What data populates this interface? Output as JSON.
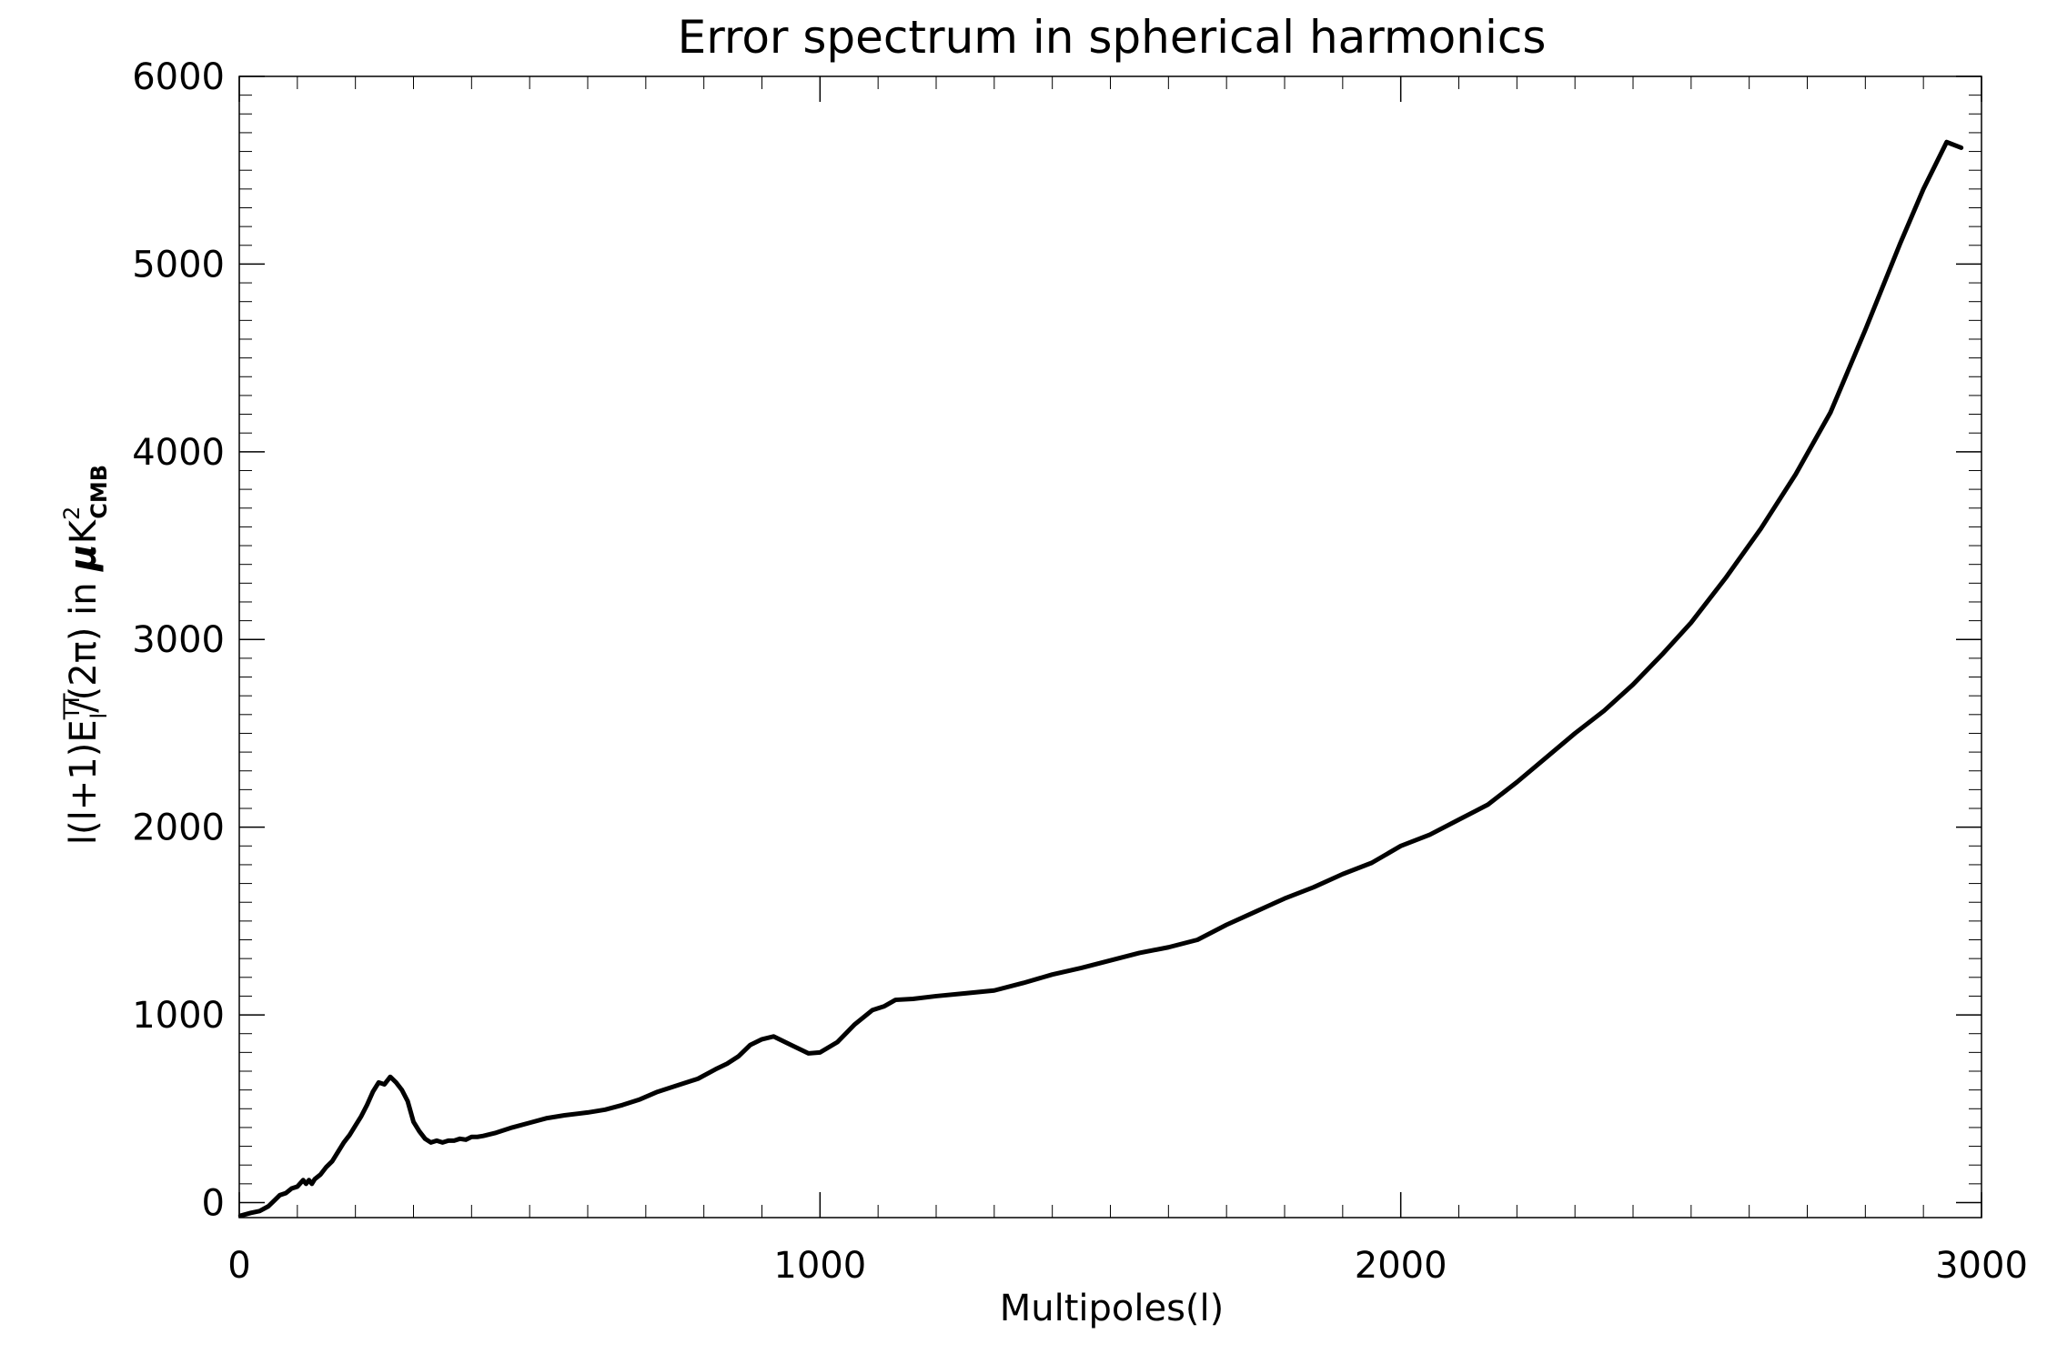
{
  "chart_data": {
    "type": "line",
    "title": "Error spectrum in spherical harmonics",
    "xlabel": "Multipoles(l)",
    "ylabel": {
      "prefix": "l(l+1)E",
      "sub": "l",
      "sup": "TT",
      "middle": "/(2π) in ",
      "mu": "μ",
      "k": "K",
      "k_sup": "2",
      "k_sub": "CMB"
    },
    "xlim": [
      0,
      3000
    ],
    "ylim": [
      -80,
      6000
    ],
    "x_ticks": [
      0,
      1000,
      2000,
      3000
    ],
    "x_tick_labels": [
      "0",
      "1000",
      "2000",
      "3000"
    ],
    "y_ticks": [
      0,
      1000,
      2000,
      3000,
      4000,
      5000,
      6000
    ],
    "y_tick_labels": [
      "0",
      "1000",
      "2000",
      "3000",
      "4000",
      "5000",
      "6000"
    ],
    "grid": false,
    "legend": "none",
    "line_color": "#000000",
    "series": [
      {
        "x": [
          2,
          20,
          35,
          50,
          60,
          70,
          80,
          90,
          100,
          110,
          115,
          120,
          125,
          130,
          140,
          150,
          160,
          170,
          180,
          190,
          200,
          210,
          220,
          230,
          240,
          250,
          260,
          270,
          280,
          290,
          300,
          310,
          320,
          330,
          340,
          350,
          360,
          370,
          380,
          390,
          400,
          410,
          420,
          440,
          470,
          500,
          530,
          560,
          600,
          630,
          660,
          690,
          720,
          750,
          790,
          820,
          840,
          860,
          880,
          900,
          920,
          950,
          980,
          1000,
          1030,
          1060,
          1090,
          1110,
          1130,
          1160,
          1200,
          1250,
          1300,
          1350,
          1400,
          1450,
          1500,
          1550,
          1600,
          1650,
          1700,
          1750,
          1800,
          1850,
          1900,
          1950,
          2000,
          2050,
          2100,
          2150,
          2200,
          2250,
          2300,
          2350,
          2400,
          2450,
          2500,
          2560,
          2620,
          2680,
          2740,
          2800,
          2860,
          2900,
          2940,
          2965
        ],
        "y": [
          -70,
          -55,
          -45,
          -20,
          10,
          40,
          50,
          75,
          85,
          120,
          100,
          120,
          100,
          125,
          150,
          190,
          220,
          270,
          320,
          360,
          410,
          460,
          520,
          590,
          640,
          630,
          670,
          640,
          600,
          540,
          430,
          380,
          340,
          320,
          330,
          320,
          330,
          330,
          340,
          335,
          350,
          350,
          355,
          370,
          400,
          425,
          450,
          465,
          480,
          495,
          520,
          550,
          590,
          620,
          660,
          710,
          740,
          780,
          840,
          870,
          885,
          840,
          795,
          800,
          855,
          950,
          1025,
          1045,
          1080,
          1085,
          1100,
          1115,
          1130,
          1170,
          1215,
          1250,
          1290,
          1330,
          1360,
          1400,
          1480,
          1550,
          1620,
          1680,
          1750,
          1810,
          1900,
          1960,
          2040,
          2120,
          2240,
          2370,
          2500,
          2620,
          2760,
          2920,
          3090,
          3330,
          3590,
          3880,
          4210,
          4650,
          5110,
          5400,
          5650,
          5620
        ]
      }
    ]
  }
}
